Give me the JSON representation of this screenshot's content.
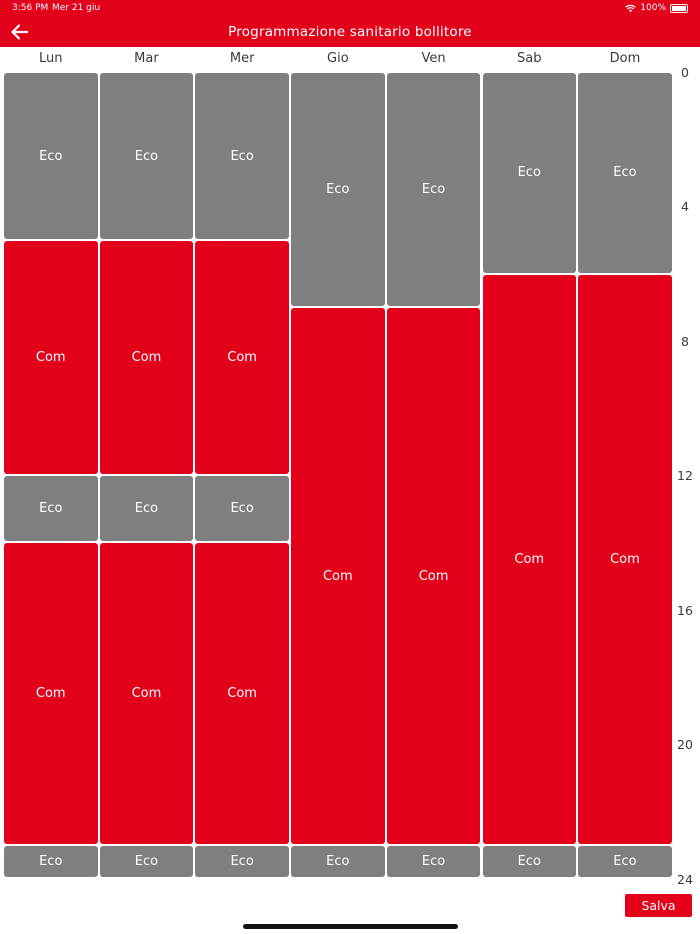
{
  "status_bar": {
    "time": "3:56 PM",
    "date": "Mer 21 giu",
    "battery": "100%"
  },
  "header": {
    "title": "Programmazione sanitario bollitore"
  },
  "days": [
    "Lun",
    "Mar",
    "Mer",
    "Gio",
    "Ven",
    "Sab",
    "Dom"
  ],
  "hour_labels": [
    "0",
    "4",
    "8",
    "12",
    "16",
    "20",
    "24"
  ],
  "hour_values": [
    0,
    4,
    8,
    12,
    16,
    20,
    24
  ],
  "schedule": [
    {
      "day": "Lun",
      "slots": [
        {
          "mode": "Eco",
          "start": 0,
          "end": 5
        },
        {
          "mode": "Com",
          "start": 5,
          "end": 12
        },
        {
          "mode": "Eco",
          "start": 12,
          "end": 14
        },
        {
          "mode": "Com",
          "start": 14,
          "end": 23
        },
        {
          "mode": "Eco",
          "start": 23,
          "end": 24
        }
      ]
    },
    {
      "day": "Mar",
      "slots": [
        {
          "mode": "Eco",
          "start": 0,
          "end": 5
        },
        {
          "mode": "Com",
          "start": 5,
          "end": 12
        },
        {
          "mode": "Eco",
          "start": 12,
          "end": 14
        },
        {
          "mode": "Com",
          "start": 14,
          "end": 23
        },
        {
          "mode": "Eco",
          "start": 23,
          "end": 24
        }
      ]
    },
    {
      "day": "Mer",
      "slots": [
        {
          "mode": "Eco",
          "start": 0,
          "end": 5
        },
        {
          "mode": "Com",
          "start": 5,
          "end": 12
        },
        {
          "mode": "Eco",
          "start": 12,
          "end": 14
        },
        {
          "mode": "Com",
          "start": 14,
          "end": 23
        },
        {
          "mode": "Eco",
          "start": 23,
          "end": 24
        }
      ]
    },
    {
      "day": "Gio",
      "slots": [
        {
          "mode": "Eco",
          "start": 0,
          "end": 7
        },
        {
          "mode": "Com",
          "start": 7,
          "end": 23
        },
        {
          "mode": "Eco",
          "start": 23,
          "end": 24
        }
      ]
    },
    {
      "day": "Ven",
      "slots": [
        {
          "mode": "Eco",
          "start": 0,
          "end": 7
        },
        {
          "mode": "Com",
          "start": 7,
          "end": 23
        },
        {
          "mode": "Eco",
          "start": 23,
          "end": 24
        }
      ]
    },
    {
      "day": "Sab",
      "slots": [
        {
          "mode": "Eco",
          "start": 0,
          "end": 6
        },
        {
          "mode": "Com",
          "start": 6,
          "end": 23
        },
        {
          "mode": "Eco",
          "start": 23,
          "end": 24
        }
      ]
    },
    {
      "day": "Dom",
      "slots": [
        {
          "mode": "Eco",
          "start": 0,
          "end": 6
        },
        {
          "mode": "Com",
          "start": 6,
          "end": 23
        },
        {
          "mode": "Eco",
          "start": 23,
          "end": 24
        }
      ]
    }
  ],
  "save_label": "Salva",
  "colors": {
    "accent": "#e2001a",
    "eco": "#7f7f7f",
    "com": "#e2001a"
  }
}
